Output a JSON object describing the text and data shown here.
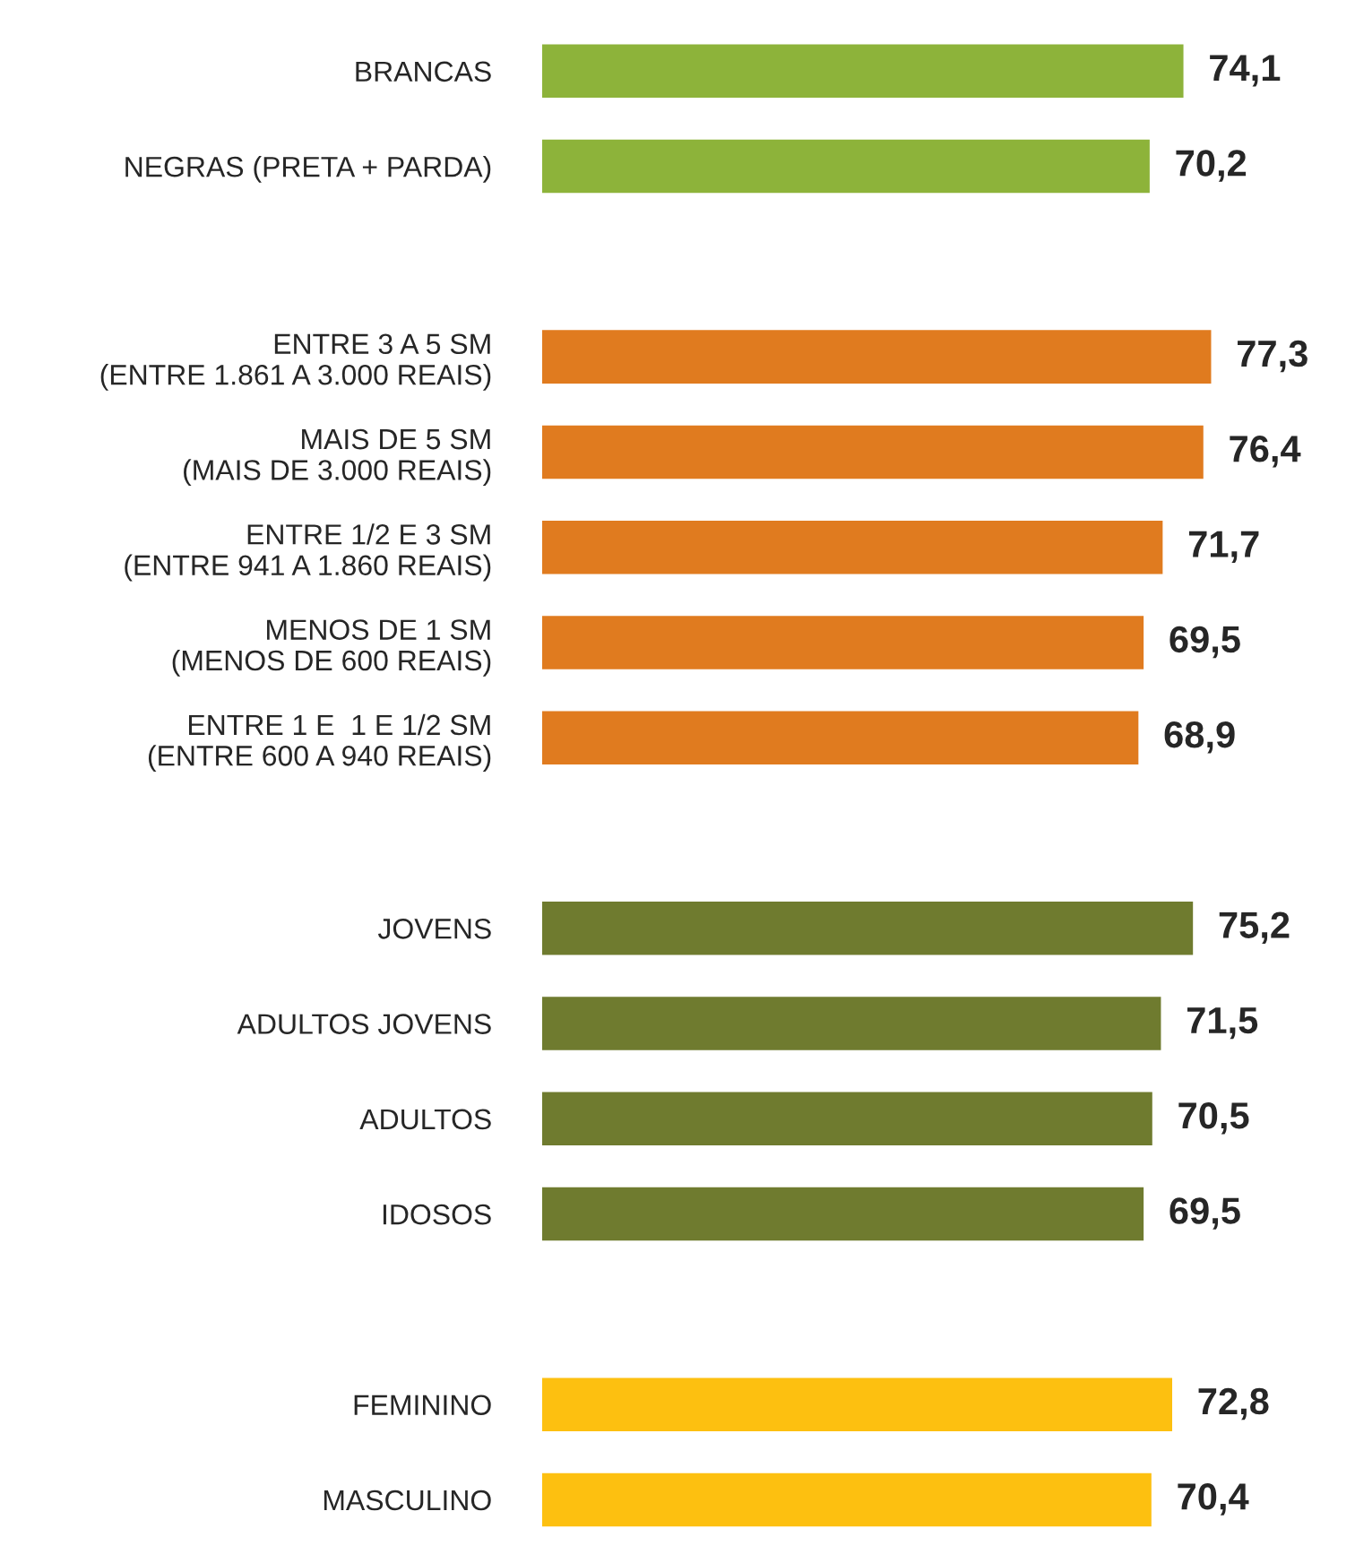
{
  "chart_data": {
    "type": "bar",
    "orientation": "horizontal",
    "value_labels": [
      "74,1",
      "70,2",
      null,
      "77,3",
      "76,4",
      "71,7",
      "69,5",
      "68,9",
      null,
      "75,2",
      "71,5",
      "70,5",
      "69,5",
      null,
      "72,8",
      "70,4"
    ],
    "categories": [
      "BRANCAS",
      "NEGRAS (PRETA + PARDA)",
      null,
      "ENTRE 3 A 5 SM\n(ENTRE 1.861 A 3.000 REAIS)",
      "MAIS DE 5 SM\n(MAIS DE 3.000 REAIS)",
      "ENTRE 1/2 E 3 SM\n(ENTRE 941 A 1.860 REAIS)",
      "MENOS DE 1 SM\n(MENOS DE 600 REAIS)",
      "ENTRE 1 E  1 E 1/2 SM\n(ENTRE 600 A 940 REAIS)",
      null,
      "JOVENS",
      "ADULTOS JOVENS",
      "ADULTOS",
      "IDOSOS",
      null,
      "FEMININO",
      "MASCULINO"
    ],
    "values": [
      74.1,
      70.2,
      null,
      77.3,
      76.4,
      71.7,
      69.5,
      68.9,
      null,
      75.2,
      71.5,
      70.5,
      69.5,
      null,
      72.8,
      70.4
    ],
    "colors": [
      "#8db33a",
      "#8db33a",
      null,
      "#e07b1f",
      "#e07b1f",
      "#e07b1f",
      "#e07b1f",
      "#e07b1f",
      null,
      "#6f7b2f",
      "#6f7b2f",
      "#6f7b2f",
      "#6f7b2f",
      null,
      "#fdc010",
      "#fdc010"
    ],
    "grid": false,
    "legend": false
  }
}
